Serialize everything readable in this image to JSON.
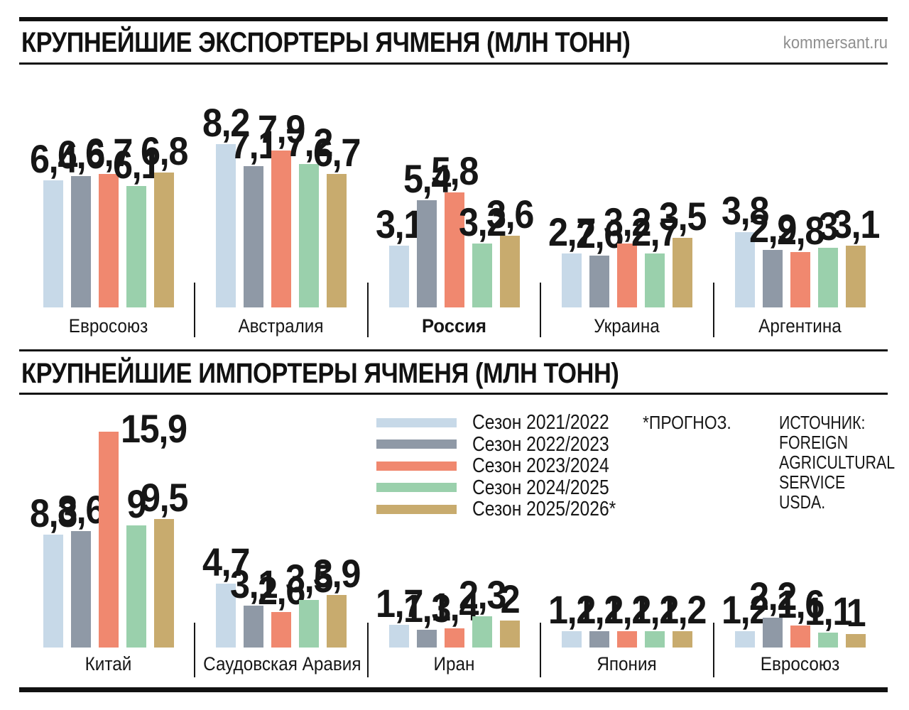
{
  "header": {
    "exporters_title": "КРУПНЕЙШИЕ ЭКСПОРТЕРЫ ЯЧМЕНЯ (МЛН ТОНН)",
    "importers_title": "КРУПНЕЙШИЕ ИМПОРТЕРЫ ЯЧМЕНЯ (МЛН ТОНН)",
    "brand": "kommersant.ru"
  },
  "palette": [
    "#c7d9e8",
    "#8f99a6",
    "#f0886f",
    "#9ad0ac",
    "#c8ab6e"
  ],
  "legend": {
    "items": [
      {
        "label": "Сезон 2021/2022",
        "color": "#c7d9e8"
      },
      {
        "label": "Сезон 2022/2023",
        "color": "#8f99a6"
      },
      {
        "label": "Сезон 2023/2024",
        "color": "#f0886f"
      },
      {
        "label": "Сезон 2024/2025",
        "color": "#9ad0ac"
      },
      {
        "label": "Сезон 2025/2026*",
        "color": "#c8ab6e"
      }
    ]
  },
  "notes": {
    "forecast": "*ПРОГНОЗ.",
    "source_lines": [
      "ИСТОЧНИК:",
      "FOREIGN",
      "AGRICULTURAL",
      "SERVICE",
      "USDA."
    ]
  },
  "chart_data": [
    {
      "type": "bar",
      "title": "КРУПНЕЙШИЕ ЭКСПОРТЕРЫ ЯЧМЕНЯ (МЛН ТОНН)",
      "unit": "млн тонн",
      "grid": false,
      "value_labels": true,
      "ylim": [
        0,
        9
      ],
      "categories": [
        "Евросоюз",
        "Австралия",
        "Россия",
        "Украина",
        "Аргентина"
      ],
      "emphasized_category_index": 2,
      "series": [
        {
          "name": "Сезон 2021/2022",
          "values": [
            6.4,
            8.2,
            3.1,
            2.7,
            3.8
          ]
        },
        {
          "name": "Сезон 2022/2023",
          "values": [
            6.6,
            7.1,
            5.4,
            2.6,
            2.9
          ]
        },
        {
          "name": "Сезон 2023/2024",
          "values": [
            6.7,
            7.9,
            5.8,
            3.2,
            2.8
          ]
        },
        {
          "name": "Сезон 2024/2025",
          "values": [
            6.1,
            7.2,
            3.2,
            2.7,
            3
          ]
        },
        {
          "name": "Сезон 2025/2026*",
          "values": [
            6.8,
            6.7,
            3.6,
            3.5,
            3.1
          ]
        }
      ]
    },
    {
      "type": "bar",
      "title": "КРУПНЕЙШИЕ ИМПОРТЕРЫ ЯЧМЕНЯ (МЛН ТОНН)",
      "unit": "млн тонн",
      "grid": false,
      "value_labels": true,
      "ylim": [
        0,
        16
      ],
      "legend_position": "top-right",
      "categories": [
        "Китай",
        "Саудовская Аравия",
        "Иран",
        "Япония",
        "Евросоюз"
      ],
      "emphasized_category_index": -1,
      "side_labels": [
        [
          0,
          2
        ]
      ],
      "series": [
        {
          "name": "Сезон 2021/2022",
          "values": [
            8.3,
            4.7,
            1.7,
            1.2,
            1.2
          ]
        },
        {
          "name": "Сезон 2022/2023",
          "values": [
            8.6,
            3.1,
            1.3,
            1.2,
            2.2
          ]
        },
        {
          "name": "Сезон 2023/2024",
          "values": [
            15.9,
            2.6,
            1.4,
            1.2,
            1.6
          ]
        },
        {
          "name": "Сезон 2024/2025",
          "values": [
            9,
            3.5,
            2.3,
            1.2,
            1.1
          ]
        },
        {
          "name": "Сезон 2025/2026*",
          "values": [
            9.5,
            3.9,
            2,
            1.2,
            1
          ]
        }
      ]
    }
  ]
}
